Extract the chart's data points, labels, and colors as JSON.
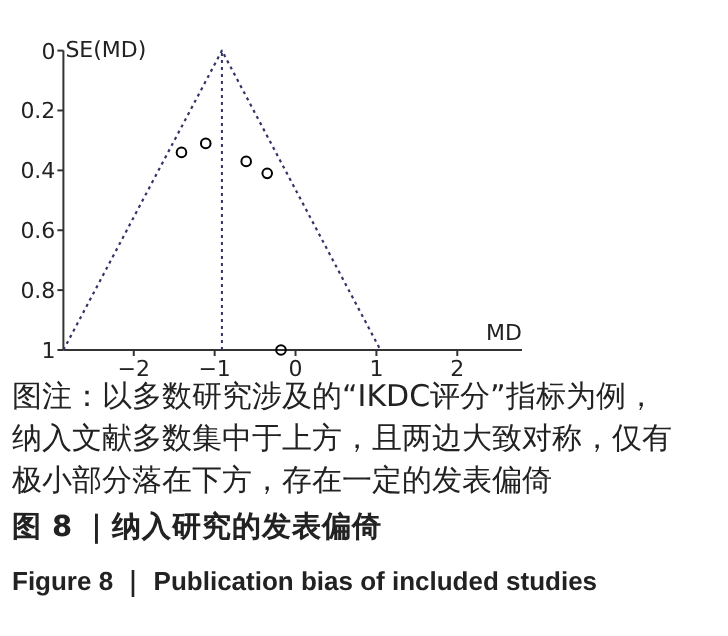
{
  "chart_data": {
    "type": "scatter",
    "xlabel": "MD",
    "ylabel": "SE(MD)",
    "xlim": [
      -2.87,
      2.8
    ],
    "ylim": [
      1,
      0
    ],
    "xticks": [
      {
        "value": -2,
        "label": "−2"
      },
      {
        "value": -1,
        "label": "−1"
      },
      0,
      1,
      2
    ],
    "yticks": [
      0,
      0.2,
      0.4,
      0.6,
      0.8,
      1
    ],
    "grid": false,
    "series": [
      {
        "color": "#000000",
        "marker": "circle",
        "x": [
          -1.41,
          -1.11,
          -0.61,
          -0.35,
          -0.18
        ],
        "values": [
          0.34,
          0.31,
          0.37,
          0.41,
          1.0
        ]
      },
      {
        "type": "line",
        "color": "#333366",
        "line_style": "dotted",
        "marker": "none",
        "x": [
          -2.87,
          -0.91,
          1.05
        ],
        "values": [
          1,
          0,
          1
        ]
      }
    ],
    "ref_lines": [
      {
        "axis": "x",
        "value": -0.91,
        "color": "#333366",
        "line_style": "dotted"
      }
    ],
    "annotations": [
      "图注：以多数研究涉及的“IKDC评分”指标为例，纳入文献多数集中于上方，且两边大致对称，仅有极小部分落在下方，存在一定的发表偏倚",
      "图 8 ｜纳入研究的发表偏倚",
      "Figure 8 ｜ Publication bias of included studies"
    ]
  }
}
